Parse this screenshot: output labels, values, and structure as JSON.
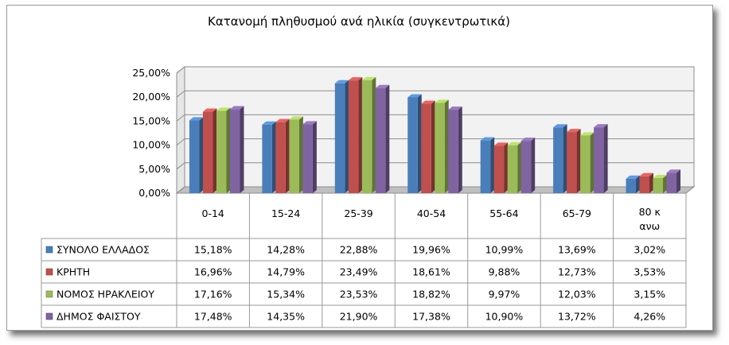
{
  "chart_data": {
    "type": "bar",
    "title": "Κατανομή πληθυσμού ανά ηλικία (συγκεντρωτικά)",
    "categories": [
      "0-14",
      "15-24",
      "25-39",
      "40-54",
      "55-64",
      "65-79",
      "80 κ ανω"
    ],
    "yticks": [
      "0,00%",
      "5,00%",
      "10,00%",
      "15,00%",
      "20,00%",
      "25,00%"
    ],
    "ylim": [
      0,
      25
    ],
    "grid": true,
    "legend": "data-table",
    "series": [
      {
        "name": "ΣΥΝΟΛΟ ΕΛΛΑΔΟΣ",
        "color": "#4a7ebb",
        "values": [
          15.18,
          14.28,
          22.88,
          19.96,
          10.99,
          13.69,
          3.02
        ],
        "labels": [
          "15,18%",
          "14,28%",
          "22,88%",
          "19,96%",
          "10,99%",
          "13,69%",
          "3,02%"
        ]
      },
      {
        "name": "ΚΡΗΤΗ",
        "color": "#c0504d",
        "values": [
          16.96,
          14.79,
          23.49,
          18.61,
          9.88,
          12.73,
          3.53
        ],
        "labels": [
          "16,96%",
          "14,79%",
          "23,49%",
          "18,61%",
          "9,88%",
          "12,73%",
          "3,53%"
        ]
      },
      {
        "name": "ΝΟΜΟΣ ΗΡΑΚΛΕΙΟΥ",
        "color": "#9bbb59",
        "values": [
          17.16,
          15.34,
          23.53,
          18.82,
          9.97,
          12.03,
          3.15
        ],
        "labels": [
          "17,16%",
          "15,34%",
          "23,53%",
          "18,82%",
          "9,97%",
          "12,03%",
          "3,15%"
        ]
      },
      {
        "name": "ΔΗΜΟΣ ΦΑΙΣΤΟΥ",
        "color": "#8064a2",
        "values": [
          17.48,
          14.35,
          21.9,
          17.38,
          10.9,
          13.72,
          4.26
        ],
        "labels": [
          "17,48%",
          "14,35%",
          "21,90%",
          "17,38%",
          "10,90%",
          "13,72%",
          "4,26%"
        ]
      }
    ]
  }
}
